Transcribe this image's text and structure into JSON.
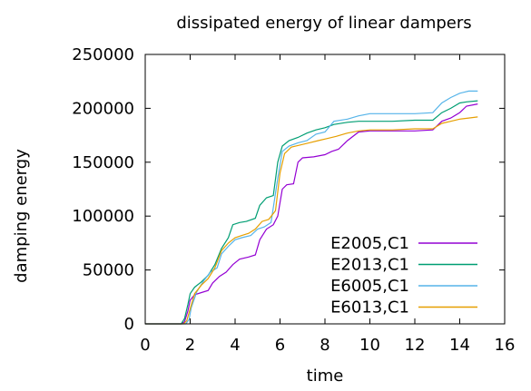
{
  "chart_data": {
    "type": "line",
    "title": "dissipated energy of linear dampers",
    "xlabel": "time",
    "ylabel": "damping energy",
    "xlim": [
      0,
      16
    ],
    "ylim": [
      0,
      250000
    ],
    "xticks": [
      "0",
      "2",
      "4",
      "6",
      "8",
      "10",
      "12",
      "14",
      "16"
    ],
    "yticks": [
      "0",
      "50000",
      "100000",
      "150000",
      "200000",
      "250000"
    ],
    "grid": false,
    "legend_position": "bottom-right",
    "series": [
      {
        "name": "E2005,C1",
        "color": "#9400d3",
        "points": [
          [
            0,
            0
          ],
          [
            1.6,
            0
          ],
          [
            1.75,
            2000
          ],
          [
            1.9,
            12000
          ],
          [
            2.0,
            22000
          ],
          [
            2.2,
            27000
          ],
          [
            2.5,
            29000
          ],
          [
            2.8,
            31000
          ],
          [
            3.0,
            38000
          ],
          [
            3.3,
            44000
          ],
          [
            3.6,
            48000
          ],
          [
            3.9,
            55000
          ],
          [
            4.2,
            60000
          ],
          [
            4.6,
            62000
          ],
          [
            4.9,
            64000
          ],
          [
            5.1,
            78000
          ],
          [
            5.4,
            88000
          ],
          [
            5.7,
            92000
          ],
          [
            5.9,
            100000
          ],
          [
            6.1,
            125000
          ],
          [
            6.3,
            129000
          ],
          [
            6.6,
            130000
          ],
          [
            6.8,
            150000
          ],
          [
            7.0,
            154000
          ],
          [
            7.5,
            155000
          ],
          [
            8.0,
            157000
          ],
          [
            8.3,
            160000
          ],
          [
            8.6,
            162000
          ],
          [
            9.0,
            170000
          ],
          [
            9.5,
            178000
          ],
          [
            10.0,
            179000
          ],
          [
            11.0,
            179000
          ],
          [
            12.0,
            179000
          ],
          [
            12.8,
            180000
          ],
          [
            13.2,
            188000
          ],
          [
            13.6,
            191000
          ],
          [
            14.0,
            196000
          ],
          [
            14.3,
            202000
          ],
          [
            14.8,
            204000
          ]
        ]
      },
      {
        "name": "E2013,C1",
        "color": "#009e73",
        "points": [
          [
            0,
            0
          ],
          [
            1.6,
            0
          ],
          [
            1.75,
            5000
          ],
          [
            1.9,
            18000
          ],
          [
            2.0,
            28000
          ],
          [
            2.2,
            34000
          ],
          [
            2.5,
            39000
          ],
          [
            2.8,
            45000
          ],
          [
            3.1,
            55000
          ],
          [
            3.4,
            70000
          ],
          [
            3.7,
            80000
          ],
          [
            3.9,
            92000
          ],
          [
            4.2,
            94000
          ],
          [
            4.5,
            95000
          ],
          [
            4.9,
            98000
          ],
          [
            5.1,
            110000
          ],
          [
            5.4,
            117000
          ],
          [
            5.7,
            119000
          ],
          [
            5.9,
            150000
          ],
          [
            6.1,
            165000
          ],
          [
            6.4,
            170000
          ],
          [
            6.8,
            173000
          ],
          [
            7.2,
            177000
          ],
          [
            7.6,
            180000
          ],
          [
            8.0,
            182000
          ],
          [
            8.4,
            185000
          ],
          [
            9.0,
            187000
          ],
          [
            9.5,
            188000
          ],
          [
            10.0,
            188000
          ],
          [
            11.0,
            188000
          ],
          [
            12.0,
            189000
          ],
          [
            12.8,
            189000
          ],
          [
            13.2,
            196000
          ],
          [
            13.6,
            200000
          ],
          [
            14.0,
            205000
          ],
          [
            14.3,
            206000
          ],
          [
            14.8,
            207000
          ]
        ]
      },
      {
        "name": "E6005,C1",
        "color": "#56b4e9",
        "points": [
          [
            0,
            0
          ],
          [
            1.8,
            0
          ],
          [
            1.95,
            4000
          ],
          [
            2.05,
            15000
          ],
          [
            2.3,
            30000
          ],
          [
            2.6,
            40000
          ],
          [
            2.9,
            48000
          ],
          [
            3.2,
            52000
          ],
          [
            3.4,
            65000
          ],
          [
            3.7,
            72000
          ],
          [
            4.0,
            78000
          ],
          [
            4.3,
            80000
          ],
          [
            4.7,
            82000
          ],
          [
            5.0,
            88000
          ],
          [
            5.3,
            90000
          ],
          [
            5.6,
            94000
          ],
          [
            5.9,
            135000
          ],
          [
            6.1,
            160000
          ],
          [
            6.4,
            165000
          ],
          [
            6.8,
            168000
          ],
          [
            7.2,
            170000
          ],
          [
            7.6,
            176000
          ],
          [
            8.0,
            178000
          ],
          [
            8.4,
            188000
          ],
          [
            9.0,
            190000
          ],
          [
            9.5,
            193000
          ],
          [
            10.0,
            195000
          ],
          [
            11.0,
            195000
          ],
          [
            12.0,
            195000
          ],
          [
            12.8,
            196000
          ],
          [
            13.2,
            205000
          ],
          [
            13.6,
            210000
          ],
          [
            14.0,
            214000
          ],
          [
            14.4,
            216000
          ],
          [
            14.8,
            216000
          ]
        ]
      },
      {
        "name": "E6013,C1",
        "color": "#e69f00",
        "points": [
          [
            0,
            0
          ],
          [
            1.7,
            0
          ],
          [
            1.85,
            3000
          ],
          [
            2.0,
            14000
          ],
          [
            2.2,
            28000
          ],
          [
            2.5,
            36000
          ],
          [
            2.8,
            42000
          ],
          [
            3.1,
            52000
          ],
          [
            3.4,
            68000
          ],
          [
            3.7,
            75000
          ],
          [
            4.0,
            80000
          ],
          [
            4.3,
            82000
          ],
          [
            4.6,
            84000
          ],
          [
            4.9,
            88000
          ],
          [
            5.2,
            95000
          ],
          [
            5.5,
            97000
          ],
          [
            5.8,
            105000
          ],
          [
            6.0,
            140000
          ],
          [
            6.2,
            158000
          ],
          [
            6.5,
            164000
          ],
          [
            6.9,
            166000
          ],
          [
            7.3,
            168000
          ],
          [
            7.7,
            170000
          ],
          [
            8.1,
            172000
          ],
          [
            8.5,
            174000
          ],
          [
            9.0,
            177000
          ],
          [
            9.5,
            179000
          ],
          [
            10.0,
            180000
          ],
          [
            11.0,
            180000
          ],
          [
            12.0,
            181000
          ],
          [
            12.8,
            181000
          ],
          [
            13.2,
            186000
          ],
          [
            13.6,
            188000
          ],
          [
            14.0,
            190000
          ],
          [
            14.4,
            191000
          ],
          [
            14.8,
            192000
          ]
        ]
      }
    ]
  }
}
